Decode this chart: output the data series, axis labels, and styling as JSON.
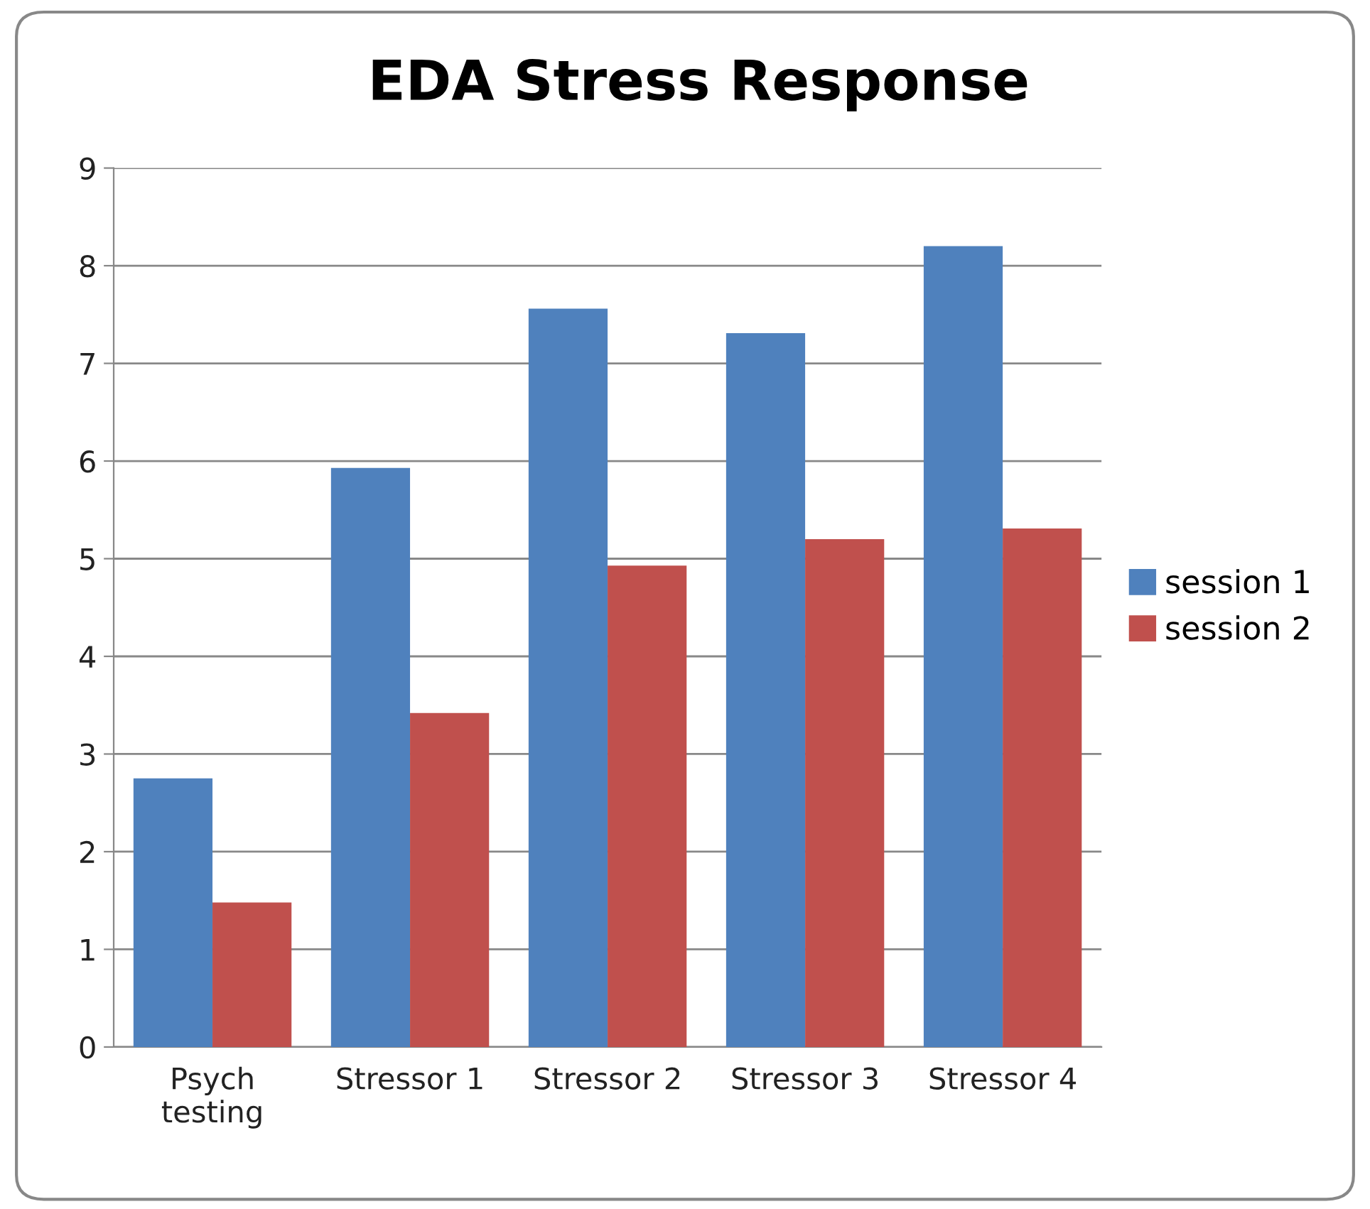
{
  "chart_data": {
    "type": "bar",
    "title": "EDA Stress Response",
    "categories": [
      "Psych\ntesting",
      "Stressor 1",
      "Stressor 2",
      "Stressor 3",
      "Stressor 4"
    ],
    "series": [
      {
        "name": "session 1",
        "color": "#4f81bd",
        "values": [
          2.75,
          5.93,
          7.56,
          7.31,
          8.2
        ]
      },
      {
        "name": "session 2",
        "color": "#c0504d",
        "values": [
          1.48,
          3.42,
          4.93,
          5.2,
          5.31
        ]
      }
    ],
    "ylim": [
      0,
      9
    ],
    "yticks": [
      0,
      1,
      2,
      3,
      4,
      5,
      6,
      7,
      8,
      9
    ],
    "grid": "y",
    "legend": "right"
  }
}
